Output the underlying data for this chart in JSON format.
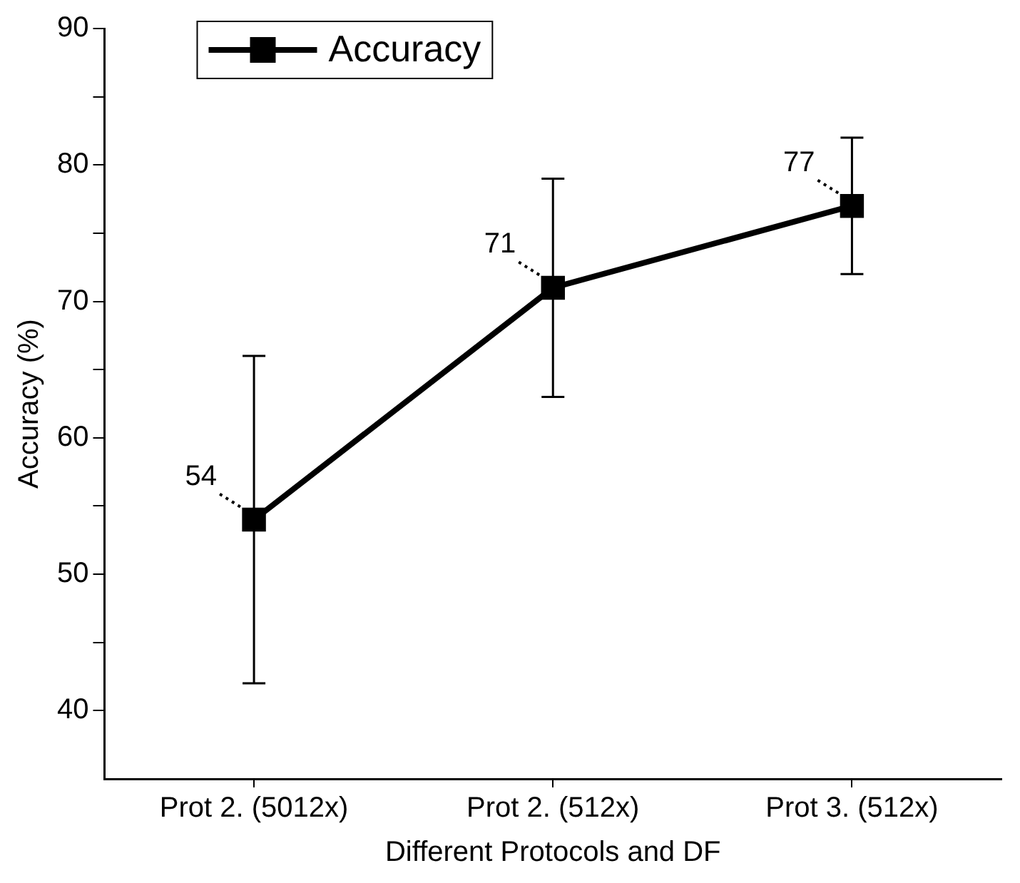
{
  "chart_data": {
    "type": "line",
    "xlabel": "Different Protocols and DF",
    "ylabel": "Accuracy (%)",
    "categories": [
      "Prot 2. (5012x)",
      "Prot 2. (512x)",
      "Prot 3. (512x)"
    ],
    "series": [
      {
        "name": "Accuracy",
        "color": "#000000",
        "values": [
          54,
          71,
          77
        ],
        "errors": [
          12,
          8,
          5
        ]
      }
    ],
    "ylim": [
      35,
      90
    ],
    "yticks": [
      40,
      {
        "value": 45,
        "label": null
      },
      50,
      {
        "value": 55,
        "label": null
      },
      60,
      {
        "value": 65,
        "label": null
      },
      70,
      {
        "value": 75,
        "label": null
      },
      80,
      {
        "value": 85,
        "label": null
      },
      90
    ],
    "data_labels": true,
    "legend": "top left",
    "marker": "square",
    "line_style": "solid",
    "grid": false
  }
}
